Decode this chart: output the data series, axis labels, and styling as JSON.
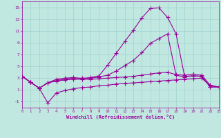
{
  "xlabel": "Windchill (Refroidissement éolien,°C)",
  "bg_color": "#c0e8e0",
  "line_color": "#990099",
  "grid_color": "#99cccc",
  "xlim": [
    0,
    23
  ],
  "ylim": [
    -2,
    16
  ],
  "xticks": [
    0,
    1,
    2,
    3,
    4,
    5,
    6,
    7,
    8,
    9,
    10,
    11,
    12,
    13,
    14,
    15,
    16,
    17,
    18,
    19,
    20,
    21,
    22,
    23
  ],
  "yticks": [
    -1,
    1,
    3,
    5,
    7,
    9,
    11,
    13,
    15
  ],
  "line1_x": [
    0,
    1,
    2,
    3,
    4,
    5,
    6,
    7,
    8,
    9,
    10,
    11,
    12,
    13,
    14,
    15,
    16,
    17,
    18,
    19,
    20,
    21,
    22,
    23
  ],
  "line1_y": [
    3.3,
    2.3,
    1.3,
    2.2,
    2.8,
    3.0,
    3.1,
    2.9,
    3.1,
    3.4,
    5.2,
    7.2,
    9.2,
    11.1,
    13.2,
    14.8,
    14.9,
    13.3,
    10.5,
    3.3,
    3.4,
    3.3,
    1.5,
    1.5
  ],
  "line2_x": [
    0,
    1,
    2,
    3,
    4,
    5,
    6,
    7,
    8,
    9,
    10,
    11,
    12,
    13,
    14,
    15,
    16,
    17,
    18,
    19,
    20,
    21,
    22,
    23
  ],
  "line2_y": [
    3.3,
    2.3,
    1.3,
    2.2,
    2.6,
    2.8,
    3.0,
    3.0,
    3.0,
    3.2,
    3.5,
    4.2,
    5.1,
    6.0,
    7.3,
    8.9,
    9.7,
    10.5,
    3.5,
    3.2,
    3.4,
    3.3,
    1.5,
    1.5
  ],
  "line3_x": [
    0,
    1,
    2,
    3,
    4,
    5,
    6,
    7,
    8,
    9,
    10,
    11,
    12,
    13,
    14,
    15,
    16,
    17,
    18,
    19,
    20,
    21,
    22,
    23
  ],
  "line3_y": [
    3.3,
    2.3,
    1.3,
    2.2,
    2.5,
    2.7,
    2.8,
    2.8,
    2.8,
    2.9,
    3.0,
    3.1,
    3.2,
    3.3,
    3.5,
    3.7,
    3.9,
    4.0,
    3.6,
    3.5,
    3.7,
    3.5,
    1.8,
    1.5
  ],
  "line4_x": [
    0,
    1,
    2,
    3,
    4,
    5,
    6,
    7,
    8,
    9,
    10,
    11,
    12,
    13,
    14,
    15,
    16,
    17,
    18,
    19,
    20,
    21,
    22,
    23
  ],
  "line4_y": [
    3.3,
    2.3,
    1.3,
    -1.2,
    0.5,
    0.9,
    1.2,
    1.4,
    1.5,
    1.7,
    1.8,
    2.0,
    2.1,
    2.2,
    2.3,
    2.4,
    2.5,
    2.6,
    2.7,
    2.8,
    2.9,
    3.0,
    1.7,
    1.5
  ]
}
